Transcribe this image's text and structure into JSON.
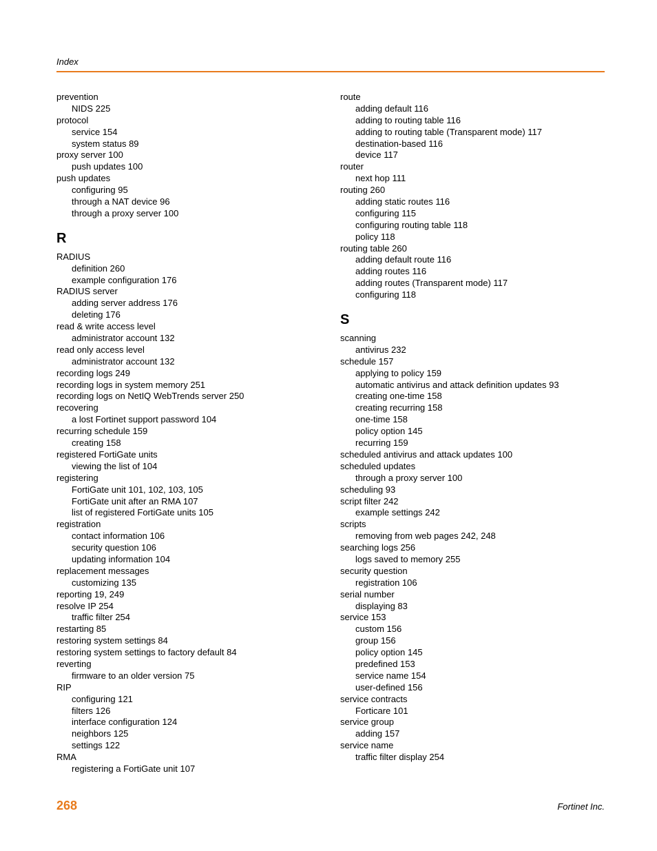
{
  "header": "Index",
  "pageNumber": "268",
  "company": "Fortinet Inc.",
  "left": [
    {
      "t": "e",
      "v": "prevention"
    },
    {
      "t": "s",
      "v": "NIDS 225"
    },
    {
      "t": "e",
      "v": "protocol"
    },
    {
      "t": "s",
      "v": "service 154"
    },
    {
      "t": "s",
      "v": "system status 89"
    },
    {
      "t": "e",
      "v": "proxy server 100"
    },
    {
      "t": "s",
      "v": "push updates 100"
    },
    {
      "t": "e",
      "v": "push updates"
    },
    {
      "t": "s",
      "v": "configuring 95"
    },
    {
      "t": "s",
      "v": "through a NAT device 96"
    },
    {
      "t": "s",
      "v": "through a proxy server 100"
    },
    {
      "t": "L",
      "v": "R"
    },
    {
      "t": "e",
      "v": "RADIUS"
    },
    {
      "t": "s",
      "v": "definition 260"
    },
    {
      "t": "s",
      "v": "example configuration 176"
    },
    {
      "t": "e",
      "v": "RADIUS server"
    },
    {
      "t": "s",
      "v": "adding server address 176"
    },
    {
      "t": "s",
      "v": "deleting 176"
    },
    {
      "t": "e",
      "v": "read & write access level"
    },
    {
      "t": "s",
      "v": "administrator account 132"
    },
    {
      "t": "e",
      "v": "read only access level"
    },
    {
      "t": "s",
      "v": "administrator account 132"
    },
    {
      "t": "e",
      "v": "recording logs 249"
    },
    {
      "t": "e",
      "v": "recording logs in system memory 251"
    },
    {
      "t": "e",
      "v": "recording logs on NetIQ WebTrends server 250"
    },
    {
      "t": "e",
      "v": "recovering"
    },
    {
      "t": "s",
      "v": "a lost Fortinet support password 104"
    },
    {
      "t": "e",
      "v": "recurring schedule 159"
    },
    {
      "t": "s",
      "v": "creating 158"
    },
    {
      "t": "e",
      "v": "registered FortiGate units"
    },
    {
      "t": "s",
      "v": "viewing the list of 104"
    },
    {
      "t": "e",
      "v": "registering"
    },
    {
      "t": "s",
      "v": "FortiGate unit 101, 102, 103, 105"
    },
    {
      "t": "s",
      "v": "FortiGate unit after an RMA 107"
    },
    {
      "t": "s",
      "v": "list of registered FortiGate units 105"
    },
    {
      "t": "e",
      "v": "registration"
    },
    {
      "t": "s",
      "v": "contact information 106"
    },
    {
      "t": "s",
      "v": "security question 106"
    },
    {
      "t": "s",
      "v": "updating information 104"
    },
    {
      "t": "e",
      "v": "replacement messages"
    },
    {
      "t": "s",
      "v": "customizing 135"
    },
    {
      "t": "e",
      "v": "reporting 19, 249"
    },
    {
      "t": "e",
      "v": "resolve IP 254"
    },
    {
      "t": "s",
      "v": "traffic filter 254"
    },
    {
      "t": "e",
      "v": "restarting 85"
    },
    {
      "t": "e",
      "v": "restoring system settings 84"
    },
    {
      "t": "e",
      "v": "restoring system settings to factory default 84"
    },
    {
      "t": "e",
      "v": "reverting"
    },
    {
      "t": "s",
      "v": "firmware to an older version 75"
    },
    {
      "t": "e",
      "v": "RIP"
    },
    {
      "t": "s",
      "v": "configuring 121"
    },
    {
      "t": "s",
      "v": "filters 126"
    },
    {
      "t": "s",
      "v": "interface configuration 124"
    },
    {
      "t": "s",
      "v": "neighbors 125"
    },
    {
      "t": "s",
      "v": "settings 122"
    },
    {
      "t": "e",
      "v": "RMA"
    },
    {
      "t": "s",
      "v": "registering a FortiGate unit 107"
    }
  ],
  "right": [
    {
      "t": "e",
      "v": "route"
    },
    {
      "t": "s",
      "v": "adding default 116"
    },
    {
      "t": "s",
      "v": "adding to routing table 116"
    },
    {
      "t": "s",
      "v": "adding to routing table (Transparent mode) 117"
    },
    {
      "t": "s",
      "v": "destination-based 116"
    },
    {
      "t": "s",
      "v": "device 117"
    },
    {
      "t": "e",
      "v": "router"
    },
    {
      "t": "s",
      "v": "next hop 111"
    },
    {
      "t": "e",
      "v": "routing 260"
    },
    {
      "t": "s",
      "v": "adding static routes 116"
    },
    {
      "t": "s",
      "v": "configuring 115"
    },
    {
      "t": "s",
      "v": "configuring routing table 118"
    },
    {
      "t": "s",
      "v": "policy 118"
    },
    {
      "t": "e",
      "v": "routing table 260"
    },
    {
      "t": "s",
      "v": "adding default route 116"
    },
    {
      "t": "s",
      "v": "adding routes 116"
    },
    {
      "t": "s",
      "v": "adding routes (Transparent mode) 117"
    },
    {
      "t": "s",
      "v": "configuring 118"
    },
    {
      "t": "L",
      "v": "S"
    },
    {
      "t": "e",
      "v": "scanning"
    },
    {
      "t": "s",
      "v": "antivirus 232"
    },
    {
      "t": "e",
      "v": "schedule 157"
    },
    {
      "t": "s",
      "v": "applying to policy 159"
    },
    {
      "t": "s",
      "v": "automatic antivirus and attack definition updates 93"
    },
    {
      "t": "s",
      "v": "creating one-time 158"
    },
    {
      "t": "s",
      "v": "creating recurring 158"
    },
    {
      "t": "s",
      "v": "one-time 158"
    },
    {
      "t": "s",
      "v": "policy option 145"
    },
    {
      "t": "s",
      "v": "recurring 159"
    },
    {
      "t": "e",
      "v": "scheduled antivirus and attack updates 100"
    },
    {
      "t": "e",
      "v": "scheduled updates"
    },
    {
      "t": "s",
      "v": "through a proxy server 100"
    },
    {
      "t": "e",
      "v": "scheduling 93"
    },
    {
      "t": "e",
      "v": "script filter 242"
    },
    {
      "t": "s",
      "v": "example settings 242"
    },
    {
      "t": "e",
      "v": "scripts"
    },
    {
      "t": "s",
      "v": "removing from web pages 242, 248"
    },
    {
      "t": "e",
      "v": "searching logs 256"
    },
    {
      "t": "s",
      "v": "logs saved to memory 255"
    },
    {
      "t": "e",
      "v": "security question"
    },
    {
      "t": "s",
      "v": "registration 106"
    },
    {
      "t": "e",
      "v": "serial number"
    },
    {
      "t": "s",
      "v": "displaying 83"
    },
    {
      "t": "e",
      "v": "service 153"
    },
    {
      "t": "s",
      "v": "custom 156"
    },
    {
      "t": "s",
      "v": "group 156"
    },
    {
      "t": "s",
      "v": "policy option 145"
    },
    {
      "t": "s",
      "v": "predefined 153"
    },
    {
      "t": "s",
      "v": "service name 154"
    },
    {
      "t": "s",
      "v": "user-defined 156"
    },
    {
      "t": "e",
      "v": "service contracts"
    },
    {
      "t": "s",
      "v": "Forticare 101"
    },
    {
      "t": "e",
      "v": "service group"
    },
    {
      "t": "s",
      "v": "adding 157"
    },
    {
      "t": "e",
      "v": "service name"
    },
    {
      "t": "s",
      "v": "traffic filter display 254"
    }
  ]
}
